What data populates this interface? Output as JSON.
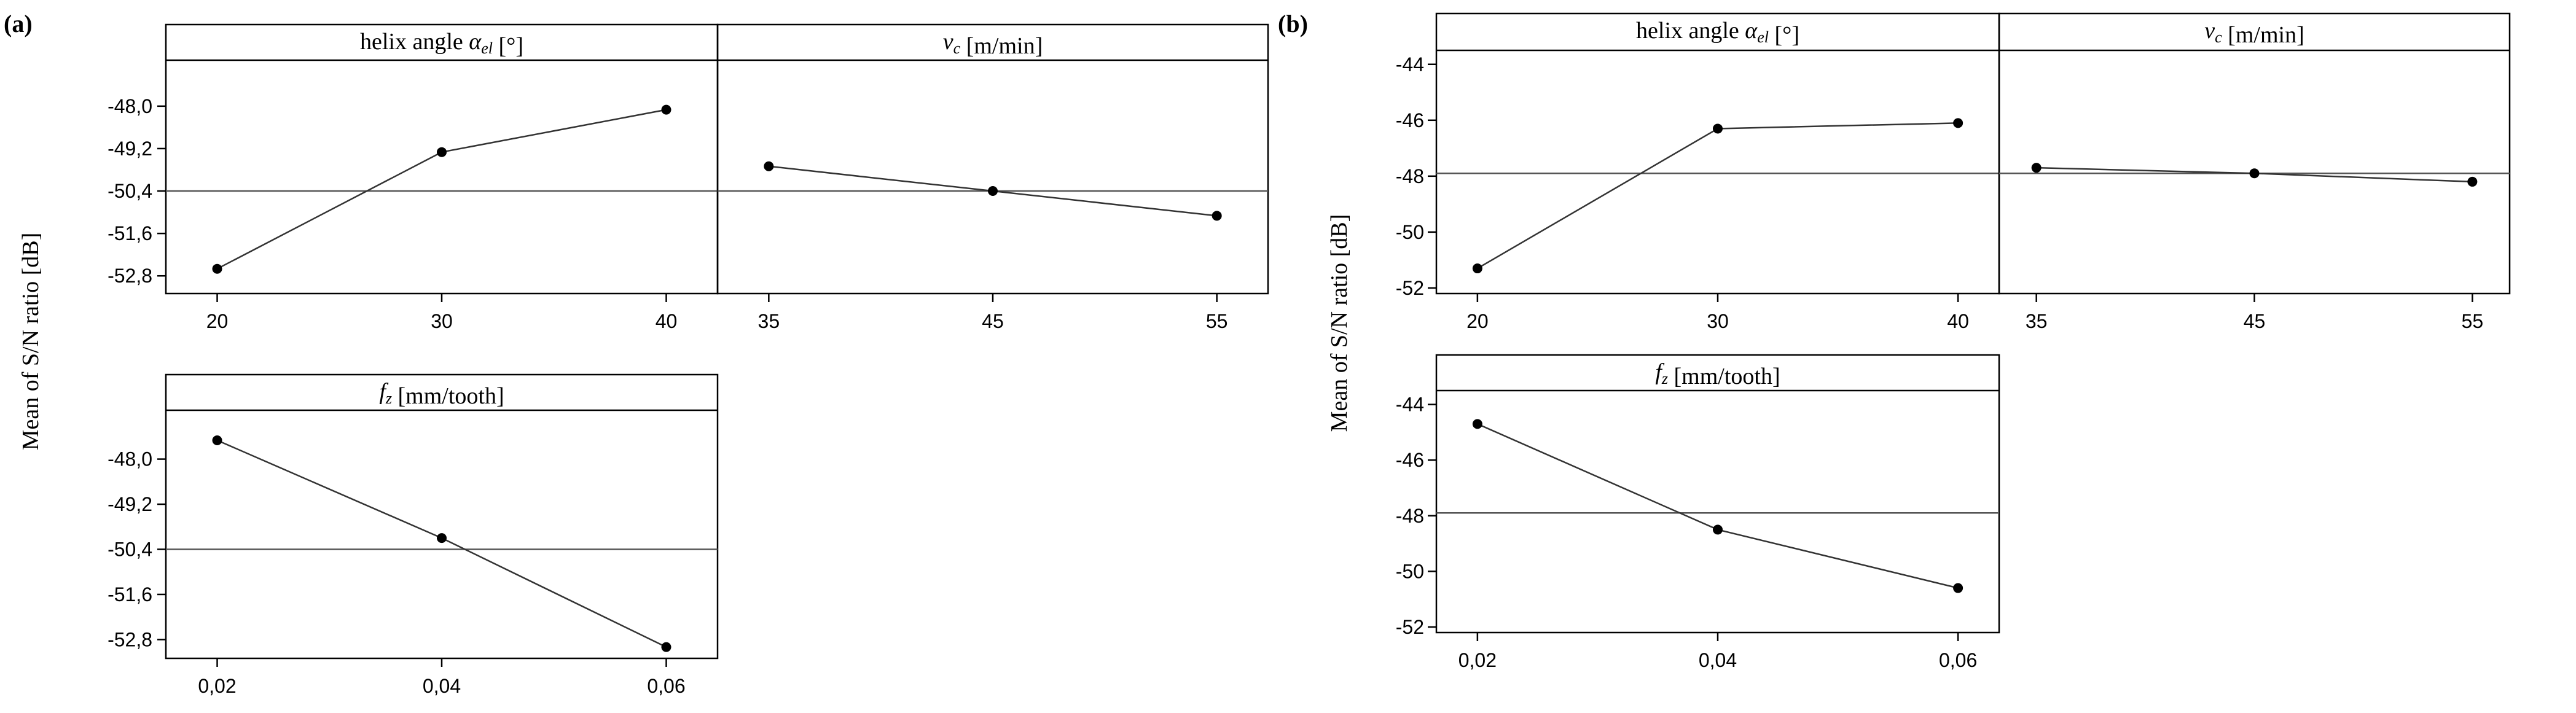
{
  "chart_data": [
    {
      "type": "line",
      "panel_label": "(a)",
      "ylabel": "Mean of S/N ratio [dB]",
      "ylim": [
        -53.3,
        -46.7
      ],
      "yticks": [
        -48.0,
        -49.2,
        -50.4,
        -51.6,
        -52.8
      ],
      "ytick_labels": [
        "-48,0",
        "-49,2",
        "-50,4",
        "-51,6",
        "-52,8"
      ],
      "overall_mean": -50.4,
      "subplots": [
        {
          "title": "helix angle αel [°]",
          "categories": [
            "20",
            "30",
            "40"
          ],
          "values": [
            -52.6,
            -49.3,
            -48.1
          ]
        },
        {
          "title": "vc [m/min]",
          "categories": [
            "35",
            "45",
            "55"
          ],
          "values": [
            -49.7,
            -50.4,
            -51.1
          ]
        },
        {
          "title": "fz [mm/tooth]",
          "categories": [
            "0,02",
            "0,04",
            "0,06"
          ],
          "values": [
            -47.5,
            -50.1,
            -53.0
          ]
        }
      ]
    },
    {
      "type": "line",
      "panel_label": "(b)",
      "ylabel": "Mean of S/N ratio [dB]",
      "ylim": [
        -52.2,
        -43.5
      ],
      "yticks": [
        -44,
        -46,
        -48,
        -50,
        -52
      ],
      "ytick_labels": [
        "-44",
        "-46",
        "-48",
        "-50",
        "-52"
      ],
      "overall_mean": -47.9,
      "subplots": [
        {
          "title": "helix angle αel [°]",
          "categories": [
            "20",
            "30",
            "40"
          ],
          "values": [
            -51.3,
            -46.3,
            -46.1
          ]
        },
        {
          "title": "vc [m/min]",
          "categories": [
            "35",
            "45",
            "55"
          ],
          "values": [
            -47.7,
            -47.9,
            -48.2
          ]
        },
        {
          "title": "fz [mm/tooth]",
          "categories": [
            "0,02",
            "0,04",
            "0,06"
          ],
          "values": [
            -44.7,
            -48.5,
            -50.6
          ]
        }
      ]
    }
  ]
}
